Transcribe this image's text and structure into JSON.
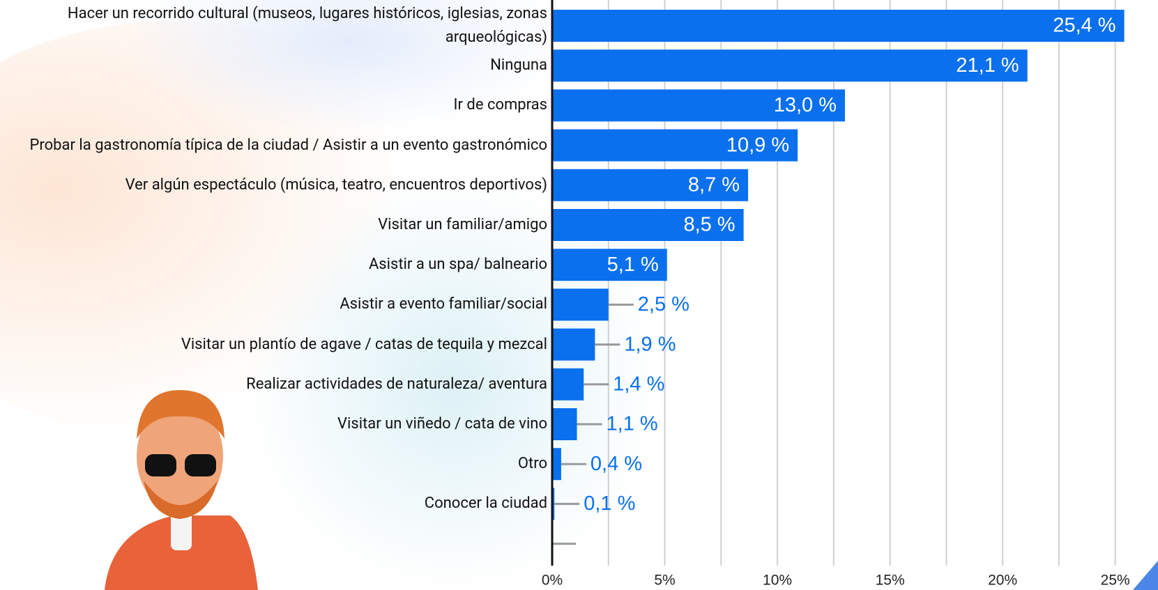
{
  "chart_data": {
    "type": "bar",
    "orientation": "horizontal",
    "categories": [
      "Hacer un recorrido cultural (museos, lugares históricos, iglesias, zonas arqueológicas)",
      "Ninguna",
      "Ir de compras",
      "Probar la gastronomía típica de la ciudad / Asistir a un evento gastronómico",
      "Ver algún espectáculo (música, teatro, encuentros deportivos)",
      "Visitar un familiar/amigo",
      "Asistir a un spa/ balneario",
      "Asistir a evento familiar/social",
      "Visitar un plantío de agave / catas de tequila y mezcal",
      "Realizar actividades de naturaleza/ aventura",
      "Visitar un viñedo / cata de vino",
      "Otro",
      "Conocer la ciudad",
      null
    ],
    "values": [
      25.4,
      21.1,
      13.0,
      10.9,
      8.7,
      8.5,
      5.1,
      2.5,
      1.9,
      1.4,
      1.1,
      0.4,
      0.1,
      null
    ],
    "value_labels": [
      "25,4 %",
      "21,1 %",
      "13,0 %",
      "10,9 %",
      "8,7 %",
      "8,5 %",
      "5,1 %",
      "2,5 %",
      "1,9 %",
      "1,4 %",
      "1,1 %",
      "0,4 %",
      "0,1 %",
      null
    ],
    "color": "#0a70ee",
    "xlim": [
      0,
      26
    ],
    "xticks": [
      {
        "value": 0,
        "label": "0%"
      },
      {
        "value": 5,
        "label": "5%"
      },
      {
        "value": 10,
        "label": "10%"
      },
      {
        "value": 15,
        "label": "15%"
      },
      {
        "value": 20,
        "label": "20%"
      },
      {
        "value": 25,
        "label": "25%"
      }
    ],
    "minor_xticks": [
      2.5,
      7.5,
      12.5,
      17.5,
      22.5
    ],
    "grid": true
  }
}
